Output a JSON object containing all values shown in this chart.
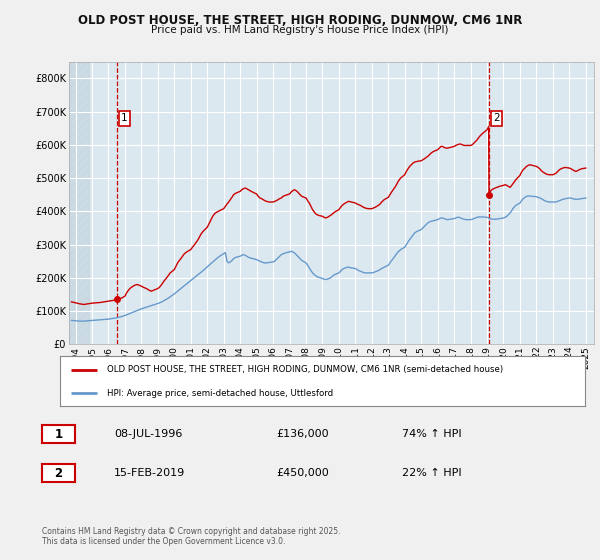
{
  "title_line1": "OLD POST HOUSE, THE STREET, HIGH RODING, DUNMOW, CM6 1NR",
  "title_line2": "Price paid vs. HM Land Registry's House Price Index (HPI)",
  "bg_color": "#f0f0f0",
  "plot_bg_color": "#dce8f0",
  "red_color": "#cc0000",
  "blue_color": "#6699cc",
  "ylim": [
    0,
    850000
  ],
  "yticks": [
    0,
    100000,
    200000,
    300000,
    400000,
    500000,
    600000,
    700000,
    800000
  ],
  "ytick_labels": [
    "£0",
    "£100K",
    "£200K",
    "£300K",
    "£400K",
    "£500K",
    "£600K",
    "£700K",
    "£800K"
  ],
  "xmin": 1993.6,
  "xmax": 2025.5,
  "transaction1": {
    "date_num": 1996.52,
    "price": 136000,
    "label": "1"
  },
  "transaction2": {
    "date_num": 2019.12,
    "price": 450000,
    "label": "2"
  },
  "legend_label_red": "OLD POST HOUSE, THE STREET, HIGH RODING, DUNMOW, CM6 1NR (semi-detached house)",
  "legend_label_blue": "HPI: Average price, semi-detached house, Uttlesford",
  "footer": "Contains HM Land Registry data © Crown copyright and database right 2025.\nThis data is licensed under the Open Government Licence v3.0.",
  "red_line_data": [
    [
      1993.75,
      128000
    ],
    [
      1994.0,
      125000
    ],
    [
      1994.25,
      122000
    ],
    [
      1994.5,
      120000
    ],
    [
      1994.75,
      122000
    ],
    [
      1995.0,
      124000
    ],
    [
      1995.25,
      125000
    ],
    [
      1995.5,
      126000
    ],
    [
      1995.75,
      128000
    ],
    [
      1996.0,
      130000
    ],
    [
      1996.25,
      132000
    ],
    [
      1996.5,
      134000
    ],
    [
      1996.52,
      136000
    ],
    [
      1996.75,
      138000
    ],
    [
      1997.0,
      145000
    ],
    [
      1997.1,
      155000
    ],
    [
      1997.2,
      162000
    ],
    [
      1997.3,
      168000
    ],
    [
      1997.4,
      172000
    ],
    [
      1997.5,
      175000
    ],
    [
      1997.6,
      178000
    ],
    [
      1997.75,
      180000
    ],
    [
      1998.0,
      175000
    ],
    [
      1998.1,
      172000
    ],
    [
      1998.2,
      170000
    ],
    [
      1998.3,
      168000
    ],
    [
      1998.4,
      165000
    ],
    [
      1998.5,
      162000
    ],
    [
      1998.6,
      160000
    ],
    [
      1998.75,
      163000
    ],
    [
      1999.0,
      168000
    ],
    [
      1999.1,
      172000
    ],
    [
      1999.2,
      178000
    ],
    [
      1999.3,
      185000
    ],
    [
      1999.4,
      192000
    ],
    [
      1999.5,
      198000
    ],
    [
      1999.6,
      205000
    ],
    [
      1999.75,
      215000
    ],
    [
      2000.0,
      225000
    ],
    [
      2000.1,
      235000
    ],
    [
      2000.2,
      245000
    ],
    [
      2000.3,
      252000
    ],
    [
      2000.4,
      258000
    ],
    [
      2000.5,
      265000
    ],
    [
      2000.6,
      272000
    ],
    [
      2000.75,
      278000
    ],
    [
      2001.0,
      285000
    ],
    [
      2001.1,
      292000
    ],
    [
      2001.2,
      298000
    ],
    [
      2001.3,
      305000
    ],
    [
      2001.4,
      312000
    ],
    [
      2001.5,
      320000
    ],
    [
      2001.6,
      330000
    ],
    [
      2001.75,
      340000
    ],
    [
      2002.0,
      352000
    ],
    [
      2002.1,
      362000
    ],
    [
      2002.2,
      372000
    ],
    [
      2002.3,
      382000
    ],
    [
      2002.4,
      390000
    ],
    [
      2002.5,
      395000
    ],
    [
      2002.6,
      398000
    ],
    [
      2002.75,
      402000
    ],
    [
      2003.0,
      408000
    ],
    [
      2003.1,
      415000
    ],
    [
      2003.2,
      422000
    ],
    [
      2003.3,
      428000
    ],
    [
      2003.4,
      435000
    ],
    [
      2003.5,
      442000
    ],
    [
      2003.6,
      450000
    ],
    [
      2003.75,
      455000
    ],
    [
      2004.0,
      460000
    ],
    [
      2004.1,
      465000
    ],
    [
      2004.2,
      468000
    ],
    [
      2004.3,
      470000
    ],
    [
      2004.4,
      468000
    ],
    [
      2004.5,
      465000
    ],
    [
      2004.6,
      462000
    ],
    [
      2004.75,
      458000
    ],
    [
      2005.0,
      452000
    ],
    [
      2005.1,
      445000
    ],
    [
      2005.2,
      440000
    ],
    [
      2005.3,
      438000
    ],
    [
      2005.4,
      435000
    ],
    [
      2005.5,
      432000
    ],
    [
      2005.6,
      430000
    ],
    [
      2005.75,
      428000
    ],
    [
      2006.0,
      428000
    ],
    [
      2006.1,
      430000
    ],
    [
      2006.2,
      432000
    ],
    [
      2006.3,
      435000
    ],
    [
      2006.4,
      438000
    ],
    [
      2006.5,
      440000
    ],
    [
      2006.6,
      445000
    ],
    [
      2006.75,
      448000
    ],
    [
      2007.0,
      452000
    ],
    [
      2007.1,
      458000
    ],
    [
      2007.2,
      462000
    ],
    [
      2007.3,
      465000
    ],
    [
      2007.4,
      462000
    ],
    [
      2007.5,
      458000
    ],
    [
      2007.6,
      452000
    ],
    [
      2007.75,
      445000
    ],
    [
      2008.0,
      440000
    ],
    [
      2008.1,
      432000
    ],
    [
      2008.2,
      425000
    ],
    [
      2008.3,
      415000
    ],
    [
      2008.4,
      405000
    ],
    [
      2008.5,
      398000
    ],
    [
      2008.6,
      392000
    ],
    [
      2008.75,
      388000
    ],
    [
      2009.0,
      385000
    ],
    [
      2009.1,
      382000
    ],
    [
      2009.2,
      380000
    ],
    [
      2009.3,
      382000
    ],
    [
      2009.4,
      385000
    ],
    [
      2009.5,
      388000
    ],
    [
      2009.6,
      392000
    ],
    [
      2009.75,
      398000
    ],
    [
      2010.0,
      405000
    ],
    [
      2010.1,
      412000
    ],
    [
      2010.2,
      418000
    ],
    [
      2010.3,
      422000
    ],
    [
      2010.4,
      425000
    ],
    [
      2010.5,
      428000
    ],
    [
      2010.6,
      430000
    ],
    [
      2010.75,
      428000
    ],
    [
      2011.0,
      425000
    ],
    [
      2011.1,
      422000
    ],
    [
      2011.2,
      420000
    ],
    [
      2011.3,
      418000
    ],
    [
      2011.4,
      415000
    ],
    [
      2011.5,
      412000
    ],
    [
      2011.6,
      410000
    ],
    [
      2011.75,
      408000
    ],
    [
      2012.0,
      408000
    ],
    [
      2012.1,
      410000
    ],
    [
      2012.2,
      412000
    ],
    [
      2012.3,
      415000
    ],
    [
      2012.4,
      418000
    ],
    [
      2012.5,
      422000
    ],
    [
      2012.6,
      428000
    ],
    [
      2012.75,
      435000
    ],
    [
      2013.0,
      442000
    ],
    [
      2013.1,
      450000
    ],
    [
      2013.2,
      458000
    ],
    [
      2013.3,
      465000
    ],
    [
      2013.4,
      472000
    ],
    [
      2013.5,
      480000
    ],
    [
      2013.6,
      490000
    ],
    [
      2013.75,
      500000
    ],
    [
      2014.0,
      510000
    ],
    [
      2014.1,
      520000
    ],
    [
      2014.2,
      528000
    ],
    [
      2014.3,
      535000
    ],
    [
      2014.4,
      540000
    ],
    [
      2014.5,
      545000
    ],
    [
      2014.6,
      548000
    ],
    [
      2014.75,
      550000
    ],
    [
      2015.0,
      552000
    ],
    [
      2015.1,
      555000
    ],
    [
      2015.2,
      558000
    ],
    [
      2015.3,
      562000
    ],
    [
      2015.4,
      565000
    ],
    [
      2015.5,
      570000
    ],
    [
      2015.6,
      575000
    ],
    [
      2015.75,
      580000
    ],
    [
      2016.0,
      585000
    ],
    [
      2016.1,
      590000
    ],
    [
      2016.2,
      595000
    ],
    [
      2016.3,
      595000
    ],
    [
      2016.4,
      592000
    ],
    [
      2016.5,
      590000
    ],
    [
      2016.6,
      590000
    ],
    [
      2016.75,
      592000
    ],
    [
      2017.0,
      595000
    ],
    [
      2017.1,
      598000
    ],
    [
      2017.2,
      600000
    ],
    [
      2017.3,
      602000
    ],
    [
      2017.4,
      602000
    ],
    [
      2017.5,
      600000
    ],
    [
      2017.6,
      598000
    ],
    [
      2017.75,
      598000
    ],
    [
      2018.0,
      598000
    ],
    [
      2018.1,
      600000
    ],
    [
      2018.2,
      605000
    ],
    [
      2018.3,
      610000
    ],
    [
      2018.4,
      615000
    ],
    [
      2018.5,
      622000
    ],
    [
      2018.6,
      628000
    ],
    [
      2018.75,
      635000
    ],
    [
      2019.0,
      645000
    ],
    [
      2019.05,
      650000
    ],
    [
      2019.1,
      655000
    ],
    [
      2019.12,
      450000
    ],
    [
      2019.2,
      460000
    ],
    [
      2019.3,
      465000
    ],
    [
      2019.4,
      468000
    ],
    [
      2019.5,
      470000
    ],
    [
      2019.6,
      472000
    ],
    [
      2019.75,
      475000
    ],
    [
      2020.0,
      478000
    ],
    [
      2020.1,
      480000
    ],
    [
      2020.2,
      478000
    ],
    [
      2020.3,
      475000
    ],
    [
      2020.4,
      472000
    ],
    [
      2020.5,
      478000
    ],
    [
      2020.6,
      485000
    ],
    [
      2020.75,
      495000
    ],
    [
      2021.0,
      508000
    ],
    [
      2021.1,
      518000
    ],
    [
      2021.2,
      525000
    ],
    [
      2021.3,
      530000
    ],
    [
      2021.4,
      535000
    ],
    [
      2021.5,
      538000
    ],
    [
      2021.6,
      540000
    ],
    [
      2021.75,
      538000
    ],
    [
      2022.0,
      535000
    ],
    [
      2022.1,
      532000
    ],
    [
      2022.2,
      528000
    ],
    [
      2022.3,
      522000
    ],
    [
      2022.4,
      518000
    ],
    [
      2022.5,
      515000
    ],
    [
      2022.6,
      512000
    ],
    [
      2022.75,
      510000
    ],
    [
      2023.0,
      510000
    ],
    [
      2023.1,
      512000
    ],
    [
      2023.2,
      515000
    ],
    [
      2023.3,
      520000
    ],
    [
      2023.4,
      525000
    ],
    [
      2023.5,
      528000
    ],
    [
      2023.6,
      530000
    ],
    [
      2023.75,
      532000
    ],
    [
      2024.0,
      530000
    ],
    [
      2024.1,
      528000
    ],
    [
      2024.2,
      525000
    ],
    [
      2024.3,
      522000
    ],
    [
      2024.4,
      520000
    ],
    [
      2024.5,
      522000
    ],
    [
      2024.6,
      525000
    ],
    [
      2024.75,
      528000
    ],
    [
      2025.0,
      530000
    ]
  ],
  "blue_line_data": [
    [
      1993.75,
      72000
    ],
    [
      1994.0,
      71000
    ],
    [
      1994.25,
      70000
    ],
    [
      1994.5,
      70000
    ],
    [
      1994.75,
      71000
    ],
    [
      1995.0,
      72000
    ],
    [
      1995.25,
      73000
    ],
    [
      1995.5,
      74000
    ],
    [
      1995.75,
      75000
    ],
    [
      1996.0,
      76000
    ],
    [
      1996.25,
      78000
    ],
    [
      1996.5,
      80000
    ],
    [
      1996.75,
      83000
    ],
    [
      1997.0,
      87000
    ],
    [
      1997.25,
      92000
    ],
    [
      1997.5,
      97000
    ],
    [
      1997.75,
      102000
    ],
    [
      1998.0,
      107000
    ],
    [
      1998.25,
      111000
    ],
    [
      1998.5,
      115000
    ],
    [
      1998.75,
      119000
    ],
    [
      1999.0,
      123000
    ],
    [
      1999.25,
      128000
    ],
    [
      1999.5,
      135000
    ],
    [
      1999.75,
      143000
    ],
    [
      2000.0,
      152000
    ],
    [
      2000.25,
      162000
    ],
    [
      2000.5,
      172000
    ],
    [
      2000.75,
      182000
    ],
    [
      2001.0,
      192000
    ],
    [
      2001.25,
      202000
    ],
    [
      2001.5,
      212000
    ],
    [
      2001.75,
      222000
    ],
    [
      2002.0,
      233000
    ],
    [
      2002.25,
      244000
    ],
    [
      2002.5,
      255000
    ],
    [
      2002.75,
      265000
    ],
    [
      2003.0,
      273000
    ],
    [
      2003.1,
      276000
    ],
    [
      2003.2,
      250000
    ],
    [
      2003.3,
      245000
    ],
    [
      2003.4,
      248000
    ],
    [
      2003.5,
      252000
    ],
    [
      2003.6,
      258000
    ],
    [
      2003.75,
      262000
    ],
    [
      2004.0,
      265000
    ],
    [
      2004.1,
      268000
    ],
    [
      2004.2,
      270000
    ],
    [
      2004.3,
      268000
    ],
    [
      2004.4,
      265000
    ],
    [
      2004.5,
      262000
    ],
    [
      2004.6,
      260000
    ],
    [
      2004.75,
      258000
    ],
    [
      2005.0,
      255000
    ],
    [
      2005.1,
      252000
    ],
    [
      2005.2,
      250000
    ],
    [
      2005.3,
      248000
    ],
    [
      2005.4,
      246000
    ],
    [
      2005.5,
      245000
    ],
    [
      2005.6,
      245000
    ],
    [
      2005.75,
      246000
    ],
    [
      2006.0,
      248000
    ],
    [
      2006.1,
      250000
    ],
    [
      2006.2,
      255000
    ],
    [
      2006.3,
      260000
    ],
    [
      2006.4,
      265000
    ],
    [
      2006.5,
      270000
    ],
    [
      2006.6,
      272000
    ],
    [
      2006.75,
      275000
    ],
    [
      2007.0,
      278000
    ],
    [
      2007.1,
      280000
    ],
    [
      2007.2,
      278000
    ],
    [
      2007.3,
      275000
    ],
    [
      2007.4,
      270000
    ],
    [
      2007.5,
      265000
    ],
    [
      2007.6,
      260000
    ],
    [
      2007.75,
      252000
    ],
    [
      2008.0,
      245000
    ],
    [
      2008.1,
      238000
    ],
    [
      2008.2,
      230000
    ],
    [
      2008.3,
      222000
    ],
    [
      2008.4,
      215000
    ],
    [
      2008.5,
      210000
    ],
    [
      2008.6,
      206000
    ],
    [
      2008.75,
      202000
    ],
    [
      2009.0,
      198000
    ],
    [
      2009.1,
      196000
    ],
    [
      2009.2,
      195000
    ],
    [
      2009.3,
      196000
    ],
    [
      2009.4,
      198000
    ],
    [
      2009.5,
      200000
    ],
    [
      2009.6,
      205000
    ],
    [
      2009.75,
      210000
    ],
    [
      2010.0,
      215000
    ],
    [
      2010.1,
      220000
    ],
    [
      2010.2,
      225000
    ],
    [
      2010.3,
      228000
    ],
    [
      2010.4,
      230000
    ],
    [
      2010.5,
      232000
    ],
    [
      2010.6,
      232000
    ],
    [
      2010.75,
      230000
    ],
    [
      2011.0,
      228000
    ],
    [
      2011.1,
      225000
    ],
    [
      2011.2,
      222000
    ],
    [
      2011.3,
      220000
    ],
    [
      2011.4,
      218000
    ],
    [
      2011.5,
      216000
    ],
    [
      2011.6,
      215000
    ],
    [
      2011.75,
      215000
    ],
    [
      2012.0,
      215000
    ],
    [
      2012.1,
      216000
    ],
    [
      2012.2,
      218000
    ],
    [
      2012.3,
      220000
    ],
    [
      2012.4,
      222000
    ],
    [
      2012.5,
      225000
    ],
    [
      2012.6,
      228000
    ],
    [
      2012.75,
      232000
    ],
    [
      2013.0,
      238000
    ],
    [
      2013.1,
      245000
    ],
    [
      2013.2,
      252000
    ],
    [
      2013.3,
      258000
    ],
    [
      2013.4,
      265000
    ],
    [
      2013.5,
      272000
    ],
    [
      2013.6,
      278000
    ],
    [
      2013.75,
      285000
    ],
    [
      2014.0,
      292000
    ],
    [
      2014.1,
      300000
    ],
    [
      2014.2,
      308000
    ],
    [
      2014.3,
      315000
    ],
    [
      2014.4,
      322000
    ],
    [
      2014.5,
      328000
    ],
    [
      2014.6,
      335000
    ],
    [
      2014.75,
      340000
    ],
    [
      2015.0,
      345000
    ],
    [
      2015.1,
      350000
    ],
    [
      2015.2,
      355000
    ],
    [
      2015.3,
      360000
    ],
    [
      2015.4,
      365000
    ],
    [
      2015.5,
      368000
    ],
    [
      2015.6,
      370000
    ],
    [
      2015.75,
      372000
    ],
    [
      2016.0,
      375000
    ],
    [
      2016.1,
      378000
    ],
    [
      2016.2,
      380000
    ],
    [
      2016.3,
      380000
    ],
    [
      2016.4,
      378000
    ],
    [
      2016.5,
      376000
    ],
    [
      2016.6,
      375000
    ],
    [
      2016.75,
      376000
    ],
    [
      2017.0,
      378000
    ],
    [
      2017.1,
      380000
    ],
    [
      2017.2,
      382000
    ],
    [
      2017.3,
      382000
    ],
    [
      2017.4,
      380000
    ],
    [
      2017.5,
      378000
    ],
    [
      2017.6,
      376000
    ],
    [
      2017.75,
      375000
    ],
    [
      2018.0,
      375000
    ],
    [
      2018.1,
      376000
    ],
    [
      2018.2,
      378000
    ],
    [
      2018.3,
      380000
    ],
    [
      2018.4,
      382000
    ],
    [
      2018.5,
      383000
    ],
    [
      2018.6,
      383000
    ],
    [
      2018.75,
      383000
    ],
    [
      2019.0,
      382000
    ],
    [
      2019.1,
      380000
    ],
    [
      2019.12,
      378000
    ],
    [
      2019.25,
      377000
    ],
    [
      2019.5,
      376000
    ],
    [
      2019.75,
      378000
    ],
    [
      2020.0,
      380000
    ],
    [
      2020.1,
      382000
    ],
    [
      2020.2,
      385000
    ],
    [
      2020.3,
      390000
    ],
    [
      2020.4,
      395000
    ],
    [
      2020.5,
      402000
    ],
    [
      2020.6,
      410000
    ],
    [
      2020.75,
      418000
    ],
    [
      2021.0,
      425000
    ],
    [
      2021.1,
      432000
    ],
    [
      2021.2,
      438000
    ],
    [
      2021.3,
      442000
    ],
    [
      2021.4,
      445000
    ],
    [
      2021.5,
      446000
    ],
    [
      2021.6,
      446000
    ],
    [
      2021.75,
      445000
    ],
    [
      2022.0,
      444000
    ],
    [
      2022.1,
      442000
    ],
    [
      2022.2,
      440000
    ],
    [
      2022.3,
      438000
    ],
    [
      2022.4,
      435000
    ],
    [
      2022.5,
      432000
    ],
    [
      2022.6,
      430000
    ],
    [
      2022.75,
      428000
    ],
    [
      2023.0,
      428000
    ],
    [
      2023.1,
      428000
    ],
    [
      2023.2,
      428000
    ],
    [
      2023.3,
      430000
    ],
    [
      2023.4,
      432000
    ],
    [
      2023.5,
      434000
    ],
    [
      2023.6,
      436000
    ],
    [
      2023.75,
      438000
    ],
    [
      2024.0,
      440000
    ],
    [
      2024.1,
      440000
    ],
    [
      2024.2,
      438000
    ],
    [
      2024.3,
      437000
    ],
    [
      2024.4,
      436000
    ],
    [
      2024.5,
      436000
    ],
    [
      2024.6,
      437000
    ],
    [
      2024.75,
      438000
    ],
    [
      2025.0,
      440000
    ]
  ]
}
